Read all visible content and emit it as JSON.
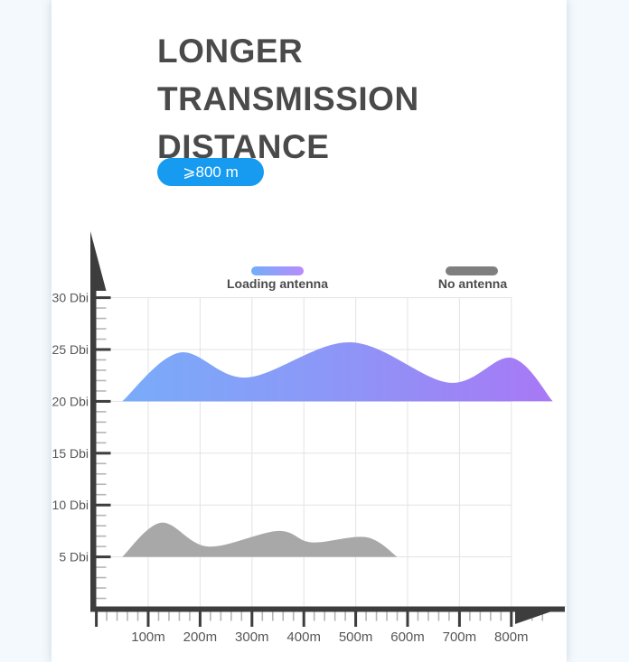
{
  "header": {
    "title_line1": "LONGER",
    "title_line2": "TRANSMISSION DISTANCE",
    "badge": "⩾800 m",
    "badge_color": "#169bf0"
  },
  "chart_data": {
    "type": "area",
    "title": "",
    "grid": true,
    "legend_position": "top",
    "axis_color": "#3d3d3d",
    "x_range_m": [
      0,
      900
    ],
    "y_range_dbi": [
      0,
      32
    ],
    "x_ticks": [
      {
        "label": "100m",
        "m": 100
      },
      {
        "label": "200m",
        "m": 200
      },
      {
        "label": "300m",
        "m": 300
      },
      {
        "label": "400m",
        "m": 400
      },
      {
        "label": "500m",
        "m": 500
      },
      {
        "label": "600m",
        "m": 600
      },
      {
        "label": "700m",
        "m": 700
      },
      {
        "label": "800m",
        "m": 800
      }
    ],
    "y_ticks": [
      {
        "label": "30 Dbi",
        "dbi": 30
      },
      {
        "label": "25 Dbi",
        "dbi": 25
      },
      {
        "label": "20 Dbi",
        "dbi": 20
      },
      {
        "label": "15 Dbi",
        "dbi": 15
      },
      {
        "label": "10 Dbi",
        "dbi": 10
      },
      {
        "label": "5 Dbi",
        "dbi": 5
      }
    ],
    "series": [
      {
        "name": "Loading antenna",
        "baseline_dbi": 20,
        "points_m_dbi": [
          [
            50,
            20
          ],
          [
            160,
            24.7
          ],
          [
            290,
            22.3
          ],
          [
            490,
            25.7
          ],
          [
            680,
            21.8
          ],
          [
            800,
            24.2
          ],
          [
            880,
            20
          ]
        ],
        "gradient": [
          "#79acf9",
          "#8d96f7",
          "#a878f5"
        ]
      },
      {
        "name": "No antenna",
        "baseline_dbi": 5,
        "points_m_dbi": [
          [
            50,
            5
          ],
          [
            125,
            8.3
          ],
          [
            215,
            6.0
          ],
          [
            350,
            7.5
          ],
          [
            415,
            6.4
          ],
          [
            520,
            6.9
          ],
          [
            580,
            5
          ]
        ],
        "color": "#a8a8a8"
      }
    ],
    "legend": [
      {
        "label": "Loading antenna",
        "swatch_gradient": [
          "#72aef8",
          "#b88cfb"
        ]
      },
      {
        "label": "No antenna",
        "swatch_color": "#7f7f7f"
      }
    ]
  }
}
